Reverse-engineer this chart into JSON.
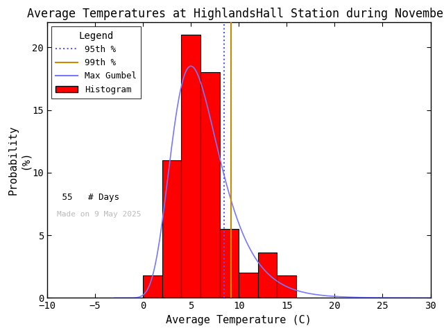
{
  "title": "Average Temperatures at HighlandsHall Station during November",
  "xlabel": "Average Temperature (C)",
  "ylabel": "Probability\n(%)",
  "xlim": [
    -10,
    30
  ],
  "ylim": [
    0,
    22
  ],
  "yticks": [
    0,
    5,
    10,
    15,
    20
  ],
  "xticks": [
    -10,
    -5,
    0,
    5,
    10,
    15,
    20,
    25,
    30
  ],
  "bin_left_edges": [
    0,
    2,
    4,
    6,
    8,
    10,
    12,
    14
  ],
  "bin_heights": [
    1.8,
    11.0,
    21.0,
    18.0,
    5.5,
    2.0,
    3.6,
    1.8
  ],
  "bin_width": 2,
  "bar_color": "#ff0000",
  "bar_edgecolor": "#000000",
  "gumbel_mu": 5.0,
  "gumbel_beta": 2.5,
  "gumbel_peak_scale": 18.5,
  "percentile_95": 8.5,
  "percentile_99": 9.2,
  "n_days": 55,
  "watermark": "Made on 9 May 2025",
  "watermark_color": "#bbbbbb",
  "legend_title": "Legend",
  "p95_color": "#5555ff",
  "p99_color": "#cc8800",
  "gumbel_color": "#7777ff",
  "background_color": "#ffffff",
  "title_fontsize": 12,
  "axis_fontsize": 11,
  "tick_fontsize": 10
}
